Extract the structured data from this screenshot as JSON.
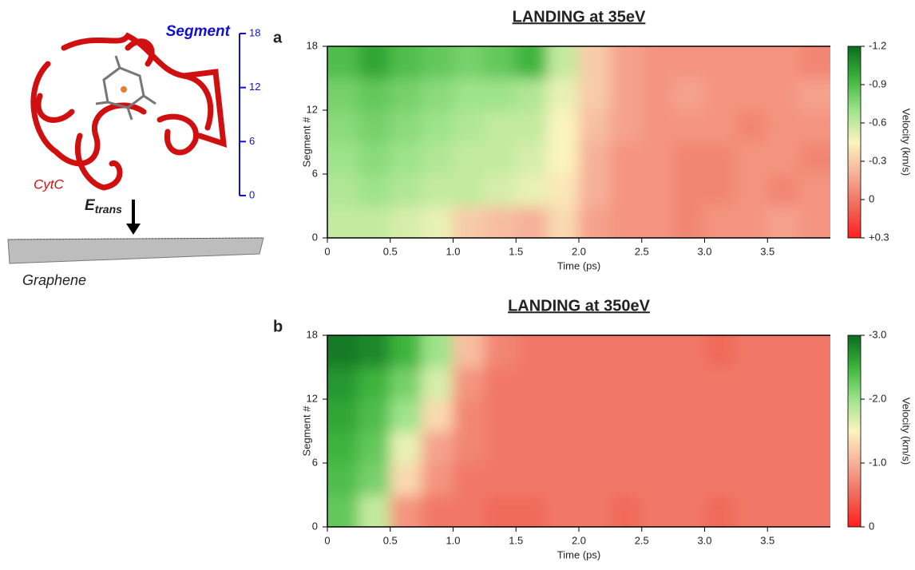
{
  "diagram": {
    "segment_label": "Segment",
    "segment_lim": [
      0,
      18
    ],
    "segment_ticks": [
      0,
      6,
      12,
      18
    ],
    "protein_label": "CytC",
    "energy_label": "E",
    "energy_subscript": "trans",
    "surface_label": "Graphene"
  },
  "chart_data": [
    {
      "type": "heatmap",
      "panel": "a",
      "title": "LANDING at 35eV",
      "x_label": "Time (ps)",
      "y_label": "Segment #",
      "colorbar_label": "Velocity (km/s)",
      "xlim": [
        0,
        4
      ],
      "ylim": [
        0,
        18
      ],
      "xticks": [
        0,
        0.5,
        {
          "value": 1,
          "label": "1.0"
        },
        1.5,
        {
          "value": 2,
          "label": "2.0"
        },
        2.5,
        {
          "value": 3,
          "label": "3.0"
        },
        3.5
      ],
      "yticks": [
        0,
        6,
        12,
        18
      ],
      "zlim": [
        -1.2,
        0.3
      ],
      "zticks": [
        -1.2,
        -0.9,
        -0.6,
        -0.3,
        0,
        {
          "value": 0.3,
          "label": "+0.3"
        }
      ],
      "colors": [
        "#0b6b1f",
        "#3cb43c",
        "#9ee38a",
        "#fbf4bf",
        "#f6b09a",
        "#f06a5a",
        "#ff1f1f"
      ],
      "x": [
        0.125,
        0.375,
        0.625,
        0.875,
        1.125,
        1.375,
        1.625,
        1.875,
        2.125,
        2.375,
        2.625,
        2.875,
        3.125,
        3.375,
        3.625,
        3.875
      ],
      "y": [
        1.5,
        4.5,
        7.5,
        10.5,
        13.5,
        16.5
      ],
      "z": [
        [
          -0.6,
          -0.6,
          -0.55,
          -0.5,
          -0.3,
          -0.25,
          -0.2,
          -0.35,
          -0.15,
          -0.1,
          -0.1,
          -0.05,
          -0.1,
          -0.1,
          -0.15,
          -0.1
        ],
        [
          -0.65,
          -0.7,
          -0.65,
          -0.6,
          -0.6,
          -0.55,
          -0.5,
          -0.4,
          -0.2,
          -0.1,
          -0.1,
          -0.05,
          -0.05,
          -0.1,
          -0.05,
          -0.1
        ],
        [
          -0.7,
          -0.75,
          -0.7,
          -0.65,
          -0.6,
          -0.6,
          -0.55,
          -0.45,
          -0.2,
          -0.1,
          -0.1,
          -0.05,
          -0.05,
          -0.1,
          -0.1,
          -0.05
        ],
        [
          -0.75,
          -0.8,
          -0.75,
          -0.7,
          -0.65,
          -0.6,
          -0.6,
          -0.45,
          -0.25,
          -0.15,
          -0.1,
          -0.1,
          -0.1,
          -0.05,
          -0.1,
          -0.1
        ],
        [
          -0.8,
          -0.85,
          -0.8,
          -0.75,
          -0.7,
          -0.7,
          -0.65,
          -0.5,
          -0.3,
          -0.15,
          -0.1,
          -0.15,
          -0.1,
          -0.1,
          -0.1,
          -0.15
        ],
        [
          -0.9,
          -1.0,
          -0.9,
          -0.85,
          -0.8,
          -0.85,
          -0.95,
          -0.6,
          -0.3,
          -0.15,
          -0.1,
          -0.1,
          -0.1,
          -0.1,
          -0.1,
          -0.05
        ]
      ]
    },
    {
      "type": "heatmap",
      "panel": "b",
      "title": "LANDING at 350eV",
      "x_label": "Time (ps)",
      "y_label": "Segment #",
      "colorbar_label": "Velocity (km/s)",
      "xlim": [
        0,
        4
      ],
      "ylim": [
        0,
        18
      ],
      "xticks": [
        0,
        0.5,
        {
          "value": 1,
          "label": "1.0"
        },
        1.5,
        {
          "value": 2,
          "label": "2.0"
        },
        2.5,
        {
          "value": 3,
          "label": "3.0"
        },
        3.5
      ],
      "yticks": [
        0,
        6,
        12,
        18
      ],
      "zlim": [
        -3,
        0
      ],
      "zticks": [
        {
          "value": -3,
          "label": "-3.0"
        },
        {
          "value": -2,
          "label": "-2.0"
        },
        {
          "value": -1,
          "label": "-1.0"
        },
        0
      ],
      "colors": [
        "#0b6b1f",
        "#3cb43c",
        "#9ee38a",
        "#fbf4bf",
        "#f6b09a",
        "#f06a5a",
        "#ff1f1f"
      ],
      "x": [
        0.125,
        0.375,
        0.625,
        0.875,
        1.125,
        1.375,
        1.625,
        1.875,
        2.125,
        2.375,
        2.625,
        2.875,
        3.125,
        3.375,
        3.625,
        3.875
      ],
      "y": [
        1.5,
        4.5,
        7.5,
        10.5,
        13.5,
        16.5
      ],
      "z": [
        [
          -2.3,
          -1.8,
          -0.8,
          -0.6,
          -0.6,
          -0.5,
          -0.5,
          -0.6,
          -0.6,
          -0.5,
          -0.6,
          -0.6,
          -0.5,
          -0.6,
          -0.6,
          -0.6
        ],
        [
          -2.4,
          -2.2,
          -1.3,
          -0.8,
          -0.6,
          -0.6,
          -0.6,
          -0.6,
          -0.6,
          -0.6,
          -0.6,
          -0.6,
          -0.6,
          -0.6,
          -0.6,
          -0.6
        ],
        [
          -2.5,
          -2.3,
          -1.6,
          -0.9,
          -0.7,
          -0.6,
          -0.6,
          -0.6,
          -0.6,
          -0.6,
          -0.6,
          -0.6,
          -0.6,
          -0.6,
          -0.6,
          -0.6
        ],
        [
          -2.6,
          -2.4,
          -2.0,
          -1.3,
          -0.7,
          -0.6,
          -0.6,
          -0.6,
          -0.6,
          -0.6,
          -0.6,
          -0.6,
          -0.6,
          -0.6,
          -0.6,
          -0.6
        ],
        [
          -2.7,
          -2.5,
          -2.2,
          -1.7,
          -0.8,
          -0.6,
          -0.6,
          -0.6,
          -0.6,
          -0.6,
          -0.6,
          -0.6,
          -0.6,
          -0.6,
          -0.6,
          -0.6
        ],
        [
          -2.9,
          -2.8,
          -2.5,
          -2.0,
          -1.1,
          -0.7,
          -0.6,
          -0.6,
          -0.6,
          -0.6,
          -0.6,
          -0.6,
          -0.5,
          -0.6,
          -0.6,
          -0.6
        ]
      ]
    }
  ]
}
